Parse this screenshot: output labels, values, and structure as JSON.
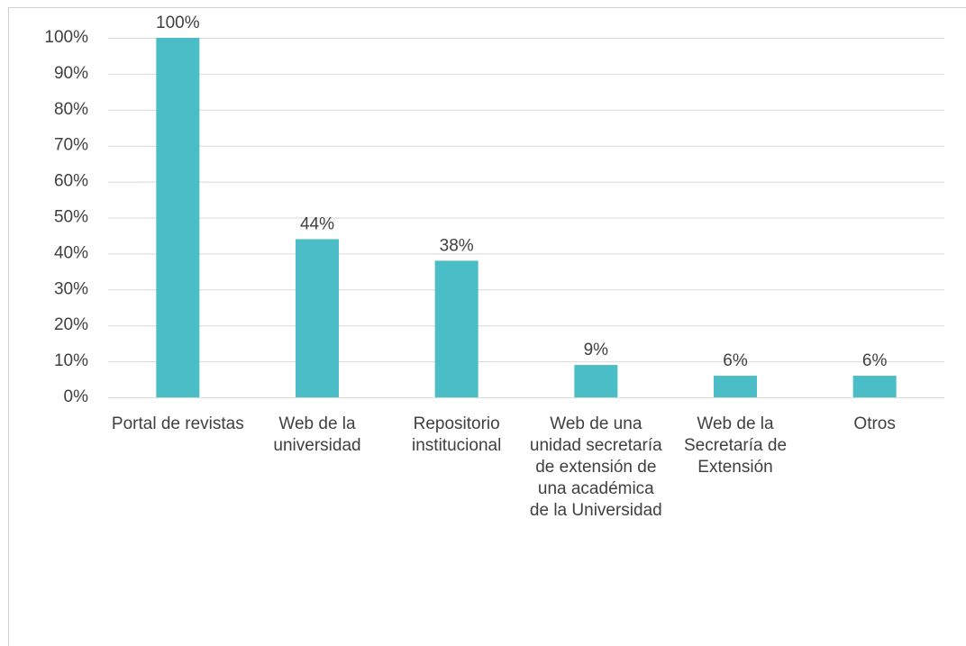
{
  "chart_data": {
    "type": "bar",
    "categories": [
      "Portal de revistas",
      "Web de la universidad",
      "Repositorio institucional",
      "Web de una unidad secretaría de extensión de una académica de la Universidad",
      "Web de la Secretaría de Extensión",
      "Otros"
    ],
    "values": [
      100,
      44,
      38,
      9,
      6,
      6
    ],
    "value_labels": [
      "100%",
      "44%",
      "38%",
      "9%",
      "6%",
      "6%"
    ],
    "color": "#4bbdc6",
    "ylim": [
      0,
      100
    ],
    "yticks": [
      {
        "value": 0,
        "label": "0%"
      },
      {
        "value": 10,
        "label": "10%"
      },
      {
        "value": 20,
        "label": "20%"
      },
      {
        "value": 30,
        "label": "30%"
      },
      {
        "value": 40,
        "label": "40%"
      },
      {
        "value": 50,
        "label": "50%"
      },
      {
        "value": 60,
        "label": "60%"
      },
      {
        "value": 70,
        "label": "70%"
      },
      {
        "value": 80,
        "label": "80%"
      },
      {
        "value": 90,
        "label": "90%"
      },
      {
        "value": 100,
        "label": "100%"
      }
    ],
    "grid": true
  }
}
